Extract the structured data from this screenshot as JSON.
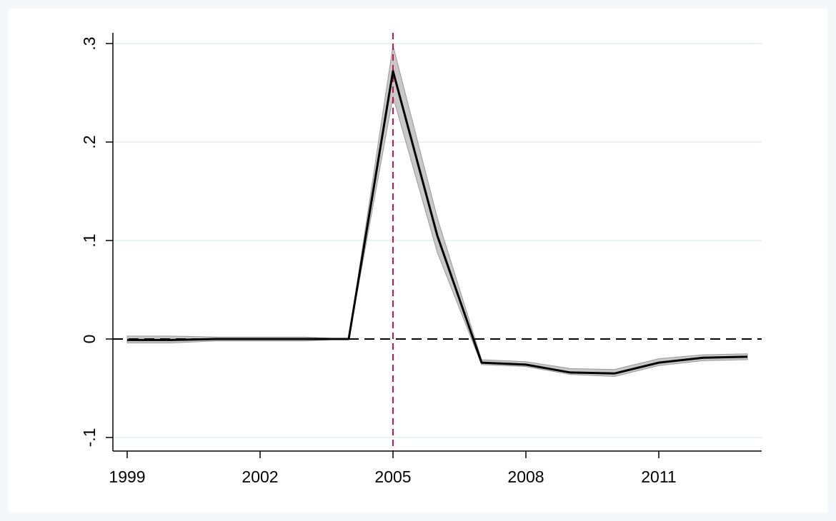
{
  "chart_data": {
    "type": "line",
    "title": "",
    "xlabel": "",
    "ylabel": "",
    "xlim": [
      1998.9,
      2013.5
    ],
    "ylim": [
      -0.115,
      0.3
    ],
    "x_ticks": [
      1999,
      2002,
      2005,
      2008,
      2011
    ],
    "x_tick_labels": [
      "1999",
      "2002",
      "2005",
      "2008",
      "2011"
    ],
    "y_ticks": [
      -0.1,
      0,
      0.1,
      0.2,
      0.3
    ],
    "y_tick_labels": [
      "-.1",
      "0",
      ".1",
      ".2",
      ".3"
    ],
    "y_grid": true,
    "reference_lines": [
      {
        "axis": "y",
        "value": 0,
        "style": "dashed",
        "color": "#000000"
      },
      {
        "axis": "x",
        "value": 2005,
        "style": "dashed",
        "color": "#c8154f"
      }
    ],
    "series": [
      {
        "x": [
          1999,
          2000,
          2001,
          2002,
          2003,
          2004,
          2005,
          2006,
          2007,
          2008,
          2009,
          2010,
          2011,
          2012,
          2013
        ],
        "values": [
          -0.001,
          -0.001,
          0.0,
          0.0,
          0.0,
          0.0,
          0.272,
          0.105,
          -0.024,
          -0.026,
          -0.034,
          -0.035,
          -0.024,
          -0.019,
          -0.018
        ],
        "lower": [
          -0.004,
          -0.004,
          -0.002,
          -0.002,
          -0.002,
          0.0,
          0.246,
          0.088,
          -0.026,
          -0.028,
          -0.036,
          -0.038,
          -0.027,
          -0.022,
          -0.021
        ],
        "upper": [
          0.003,
          0.003,
          0.002,
          0.002,
          0.002,
          0.0,
          0.298,
          0.123,
          -0.021,
          -0.023,
          -0.03,
          -0.031,
          -0.02,
          -0.016,
          -0.015
        ],
        "color": "#000000",
        "band_color": "#c8c8c8"
      }
    ]
  }
}
